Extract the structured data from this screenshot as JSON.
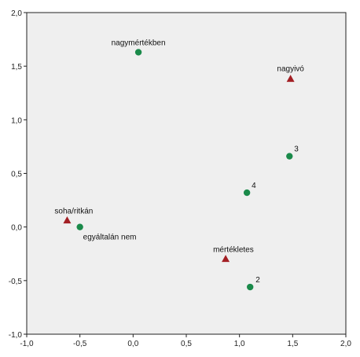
{
  "chart_data": {
    "type": "scatter",
    "xlim": [
      -1.0,
      2.0
    ],
    "ylim": [
      -1.0,
      2.0
    ],
    "xticks": [
      "-1,0",
      "-0,5",
      "0,0",
      "0,5",
      "1,0",
      "1,5",
      "2,0"
    ],
    "yticks": [
      "2,0",
      "1,5",
      "1,0",
      "0,5",
      "0,0",
      "-0,5",
      "-1,0"
    ],
    "grid": false,
    "legend": "none",
    "colors": {
      "plot_background": "#efefef",
      "circle_series": "#1a8a4a",
      "triangle_series": "#a31f24"
    },
    "series": [
      {
        "marker": "circle",
        "points": [
          {
            "label": "nagymértékben",
            "x": 0.05,
            "y": 1.63
          },
          {
            "label": "3",
            "x": 1.47,
            "y": 0.66
          },
          {
            "label": "4",
            "x": 1.07,
            "y": 0.32
          },
          {
            "label": "egyáltalán nem",
            "x": -0.5,
            "y": 0.0
          },
          {
            "label": "2",
            "x": 1.1,
            "y": -0.56
          }
        ]
      },
      {
        "marker": "triangle",
        "points": [
          {
            "label": "nagyivó",
            "x": 1.48,
            "y": 1.38
          },
          {
            "label": "soha/ritkán",
            "x": -0.62,
            "y": 0.06
          },
          {
            "label": "mértékletes",
            "x": 0.87,
            "y": -0.3
          }
        ]
      }
    ]
  }
}
